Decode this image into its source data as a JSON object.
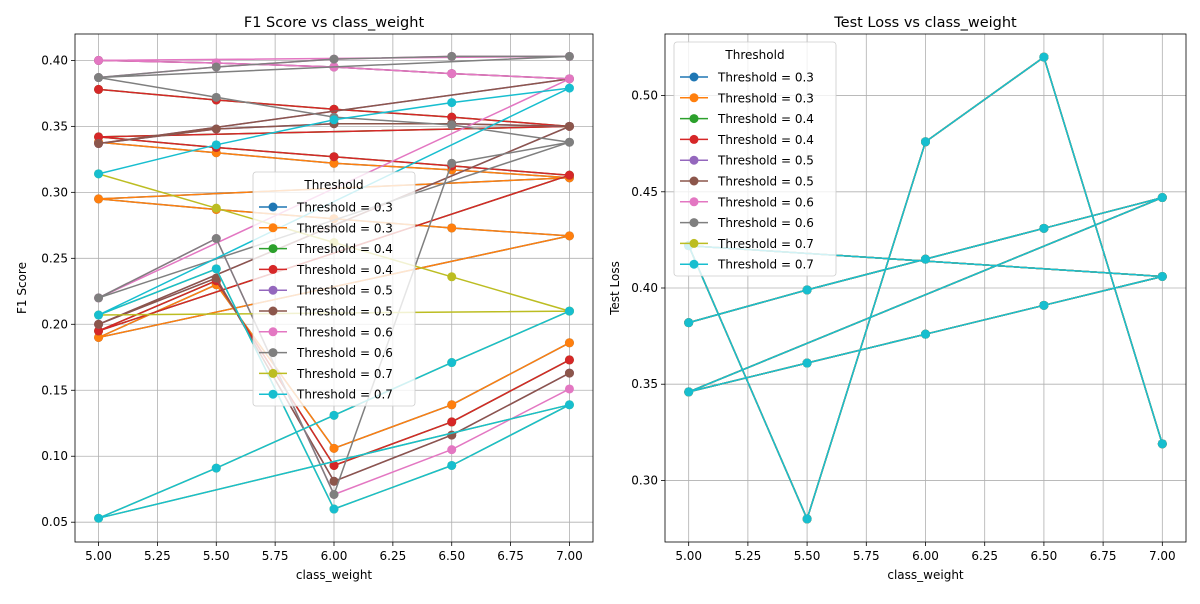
{
  "legend_title": "Threshold",
  "colors": [
    "#1f77b4",
    "#ff7f0e",
    "#2ca02c",
    "#d62728",
    "#9467bd",
    "#8c564b",
    "#e377c2",
    "#7f7f7f",
    "#bcbd22",
    "#17becf"
  ],
  "chart_data": [
    {
      "type": "line",
      "title": "F1 Score vs class_weight",
      "xlabel": "class_weight",
      "ylabel": "F1 Score",
      "xlim": [
        4.9,
        7.1
      ],
      "ylim": [
        0.035,
        0.42
      ],
      "xticks": [
        "5.00",
        "5.25",
        "5.50",
        "5.75",
        "6.00",
        "6.25",
        "6.50",
        "6.75",
        "7.00"
      ],
      "yticks": [
        "0.05",
        "0.10",
        "0.15",
        "0.20",
        "0.25",
        "0.30",
        "0.35",
        "0.40"
      ],
      "grid": true,
      "legend_title": "Threshold",
      "legend_position": "center",
      "series": [
        {
          "name": "Threshold = 0.3",
          "x": [
            5.0,
            5.5,
            6.0,
            6.5,
            7.0,
            5.0,
            5.5,
            6.0,
            6.5,
            7.0,
            5.0,
            5.5,
            6.0,
            6.5,
            7.0
          ],
          "y": [
            0.338,
            0.33,
            0.322,
            0.317,
            0.311,
            0.295,
            0.287,
            0.28,
            0.273,
            0.267,
            0.19,
            0.23,
            0.106,
            0.139,
            0.186
          ]
        },
        {
          "name": "Threshold = 0.3",
          "x": [
            5.0,
            5.5,
            6.0,
            6.5,
            7.0,
            5.0,
            5.5,
            6.0,
            6.5,
            7.0,
            5.0,
            5.5,
            6.0,
            6.5,
            7.0
          ],
          "y": [
            0.338,
            0.33,
            0.322,
            0.317,
            0.311,
            0.295,
            0.287,
            0.28,
            0.273,
            0.267,
            0.19,
            0.23,
            0.106,
            0.139,
            0.186
          ]
        },
        {
          "name": "Threshold = 0.4",
          "x": [
            5.0,
            5.5,
            6.0,
            6.5,
            7.0,
            5.0,
            5.5,
            6.0,
            6.5,
            7.0,
            5.0,
            5.5,
            6.0,
            6.5,
            7.0
          ],
          "y": [
            0.378,
            0.37,
            0.363,
            0.357,
            0.35,
            0.342,
            0.334,
            0.327,
            0.32,
            0.313,
            0.195,
            0.233,
            0.093,
            0.126,
            0.173
          ]
        },
        {
          "name": "Threshold = 0.4",
          "x": [
            5.0,
            5.5,
            6.0,
            6.5,
            7.0,
            5.0,
            5.5,
            6.0,
            6.5,
            7.0,
            5.0,
            5.5,
            6.0,
            6.5,
            7.0
          ],
          "y": [
            0.378,
            0.37,
            0.363,
            0.357,
            0.35,
            0.342,
            0.334,
            0.327,
            0.32,
            0.313,
            0.195,
            0.233,
            0.093,
            0.126,
            0.173
          ]
        },
        {
          "name": "Threshold = 0.5",
          "x": [
            5.0,
            5.5,
            6.0,
            6.5,
            7.0,
            5.0,
            5.5,
            6.0,
            6.5,
            7.0,
            5.0,
            5.5,
            6.0,
            6.5,
            7.0
          ],
          "y": [
            0.4,
            0.398,
            0.395,
            0.39,
            0.386,
            0.337,
            0.348,
            0.352,
            0.352,
            0.35,
            0.2,
            0.235,
            0.081,
            0.116,
            0.163
          ]
        },
        {
          "name": "Threshold = 0.5",
          "x": [
            5.0,
            5.5,
            6.0,
            6.5,
            7.0,
            5.0,
            5.5,
            6.0,
            6.5,
            7.0,
            5.0,
            5.5,
            6.0,
            6.5,
            7.0
          ],
          "y": [
            0.4,
            0.398,
            0.395,
            0.39,
            0.386,
            0.337,
            0.348,
            0.352,
            0.352,
            0.35,
            0.2,
            0.235,
            0.081,
            0.116,
            0.163
          ]
        },
        {
          "name": "Threshold = 0.6",
          "x": [
            5.0,
            5.5,
            6.0,
            6.5,
            7.0,
            5.0,
            5.5,
            6.0,
            6.5,
            7.0,
            5.0,
            5.5,
            6.0,
            6.5,
            7.0
          ],
          "y": [
            0.387,
            0.395,
            0.401,
            0.403,
            0.403,
            0.4,
            0.398,
            0.395,
            0.39,
            0.386,
            0.22,
            0.265,
            0.071,
            0.105,
            0.151
          ]
        },
        {
          "name": "Threshold = 0.6",
          "x": [
            5.0,
            5.5,
            6.0,
            6.5,
            7.0,
            5.0,
            5.5,
            6.0,
            6.5,
            7.0,
            5.0,
            5.5,
            6.0,
            6.5,
            7.0
          ],
          "y": [
            0.387,
            0.395,
            0.401,
            0.403,
            0.403,
            0.387,
            0.372,
            0.357,
            0.351,
            0.338,
            0.22,
            0.265,
            0.071,
            0.322,
            0.338
          ]
        },
        {
          "name": "Threshold = 0.7",
          "x": [
            5.0,
            5.5,
            6.0,
            6.5,
            7.0,
            5.0,
            5.5,
            6.0,
            6.5,
            7.0,
            5.0,
            5.5,
            6.0,
            6.5,
            7.0
          ],
          "y": [
            0.314,
            0.288,
            0.262,
            0.236,
            0.21,
            0.207,
            0.242,
            0.06,
            0.093,
            0.139,
            0.053,
            0.091,
            0.131,
            0.171,
            0.21
          ]
        },
        {
          "name": "Threshold = 0.7",
          "x": [
            5.0,
            5.5,
            6.0,
            6.5,
            7.0,
            5.0,
            5.5,
            6.0,
            6.5,
            7.0,
            5.0,
            5.5,
            6.0,
            6.5,
            7.0
          ],
          "y": [
            0.314,
            0.336,
            0.355,
            0.368,
            0.379,
            0.207,
            0.242,
            0.06,
            0.093,
            0.139,
            0.053,
            0.091,
            0.131,
            0.171,
            0.21
          ]
        }
      ]
    },
    {
      "type": "line",
      "title": "Test Loss vs class_weight",
      "xlabel": "class_weight",
      "ylabel": "Test Loss",
      "xlim": [
        4.9,
        7.1
      ],
      "ylim": [
        0.268,
        0.532
      ],
      "xticks": [
        "5.00",
        "5.25",
        "5.50",
        "5.75",
        "6.00",
        "6.25",
        "6.50",
        "6.75",
        "7.00"
      ],
      "yticks": [
        "0.30",
        "0.35",
        "0.40",
        "0.45",
        "0.50"
      ],
      "grid": true,
      "legend_title": "Threshold",
      "legend_position": "upper left",
      "series": [
        {
          "name": "Threshold = 0.3",
          "x": [
            5.0,
            5.5,
            6.0,
            6.5,
            7.0,
            5.0,
            5.5,
            6.0,
            6.5,
            7.0,
            5.0,
            5.5,
            6.0,
            6.5,
            7.0
          ],
          "y": [
            0.382,
            0.399,
            0.415,
            0.431,
            0.447,
            0.346,
            0.361,
            0.376,
            0.391,
            0.406,
            0.422,
            0.28,
            0.476,
            0.52,
            0.319
          ]
        },
        {
          "name": "Threshold = 0.3",
          "x": [
            5.0,
            5.5,
            6.0,
            6.5,
            7.0,
            5.0,
            5.5,
            6.0,
            6.5,
            7.0,
            5.0,
            5.5,
            6.0,
            6.5,
            7.0
          ],
          "y": [
            0.382,
            0.399,
            0.415,
            0.431,
            0.447,
            0.346,
            0.361,
            0.376,
            0.391,
            0.406,
            0.422,
            0.28,
            0.476,
            0.52,
            0.319
          ]
        },
        {
          "name": "Threshold = 0.4",
          "x": [
            5.0,
            5.5,
            6.0,
            6.5,
            7.0,
            5.0,
            5.5,
            6.0,
            6.5,
            7.0,
            5.0,
            5.5,
            6.0,
            6.5,
            7.0
          ],
          "y": [
            0.382,
            0.399,
            0.415,
            0.431,
            0.447,
            0.346,
            0.361,
            0.376,
            0.391,
            0.406,
            0.422,
            0.28,
            0.476,
            0.52,
            0.319
          ]
        },
        {
          "name": "Threshold = 0.4",
          "x": [
            5.0,
            5.5,
            6.0,
            6.5,
            7.0,
            5.0,
            5.5,
            6.0,
            6.5,
            7.0,
            5.0,
            5.5,
            6.0,
            6.5,
            7.0
          ],
          "y": [
            0.382,
            0.399,
            0.415,
            0.431,
            0.447,
            0.346,
            0.361,
            0.376,
            0.391,
            0.406,
            0.422,
            0.28,
            0.476,
            0.52,
            0.319
          ]
        },
        {
          "name": "Threshold = 0.5",
          "x": [
            5.0,
            5.5,
            6.0,
            6.5,
            7.0,
            5.0,
            5.5,
            6.0,
            6.5,
            7.0,
            5.0,
            5.5,
            6.0,
            6.5,
            7.0
          ],
          "y": [
            0.382,
            0.399,
            0.415,
            0.431,
            0.447,
            0.346,
            0.361,
            0.376,
            0.391,
            0.406,
            0.422,
            0.28,
            0.476,
            0.52,
            0.319
          ]
        },
        {
          "name": "Threshold = 0.5",
          "x": [
            5.0,
            5.5,
            6.0,
            6.5,
            7.0,
            5.0,
            5.5,
            6.0,
            6.5,
            7.0,
            5.0,
            5.5,
            6.0,
            6.5,
            7.0
          ],
          "y": [
            0.382,
            0.399,
            0.415,
            0.431,
            0.447,
            0.346,
            0.361,
            0.376,
            0.391,
            0.406,
            0.422,
            0.28,
            0.476,
            0.52,
            0.319
          ]
        },
        {
          "name": "Threshold = 0.6",
          "x": [
            5.0,
            5.5,
            6.0,
            6.5,
            7.0,
            5.0,
            5.5,
            6.0,
            6.5,
            7.0,
            5.0,
            5.5,
            6.0,
            6.5,
            7.0
          ],
          "y": [
            0.382,
            0.399,
            0.415,
            0.431,
            0.447,
            0.346,
            0.361,
            0.376,
            0.391,
            0.406,
            0.422,
            0.28,
            0.476,
            0.52,
            0.319
          ]
        },
        {
          "name": "Threshold = 0.6",
          "x": [
            5.0,
            5.5,
            6.0,
            6.5,
            7.0,
            5.0,
            5.5,
            6.0,
            6.5,
            7.0,
            5.0,
            5.5,
            6.0,
            6.5,
            7.0
          ],
          "y": [
            0.382,
            0.399,
            0.415,
            0.431,
            0.447,
            0.346,
            0.361,
            0.376,
            0.391,
            0.406,
            0.422,
            0.28,
            0.476,
            0.52,
            0.319
          ]
        },
        {
          "name": "Threshold = 0.7",
          "x": [
            5.0,
            5.5,
            6.0,
            6.5,
            7.0,
            5.0,
            5.5,
            6.0,
            6.5,
            7.0,
            5.0,
            5.5,
            6.0,
            6.5,
            7.0
          ],
          "y": [
            0.382,
            0.399,
            0.415,
            0.431,
            0.447,
            0.346,
            0.361,
            0.376,
            0.391,
            0.406,
            0.422,
            0.28,
            0.476,
            0.52,
            0.319
          ]
        },
        {
          "name": "Threshold = 0.7",
          "x": [
            5.0,
            5.5,
            6.0,
            6.5,
            7.0,
            5.0,
            5.5,
            6.0,
            6.5,
            7.0,
            5.0,
            5.5,
            6.0,
            6.5,
            7.0
          ],
          "y": [
            0.382,
            0.399,
            0.415,
            0.431,
            0.447,
            0.346,
            0.361,
            0.376,
            0.391,
            0.406,
            0.422,
            0.28,
            0.476,
            0.52,
            0.319
          ]
        }
      ]
    }
  ]
}
